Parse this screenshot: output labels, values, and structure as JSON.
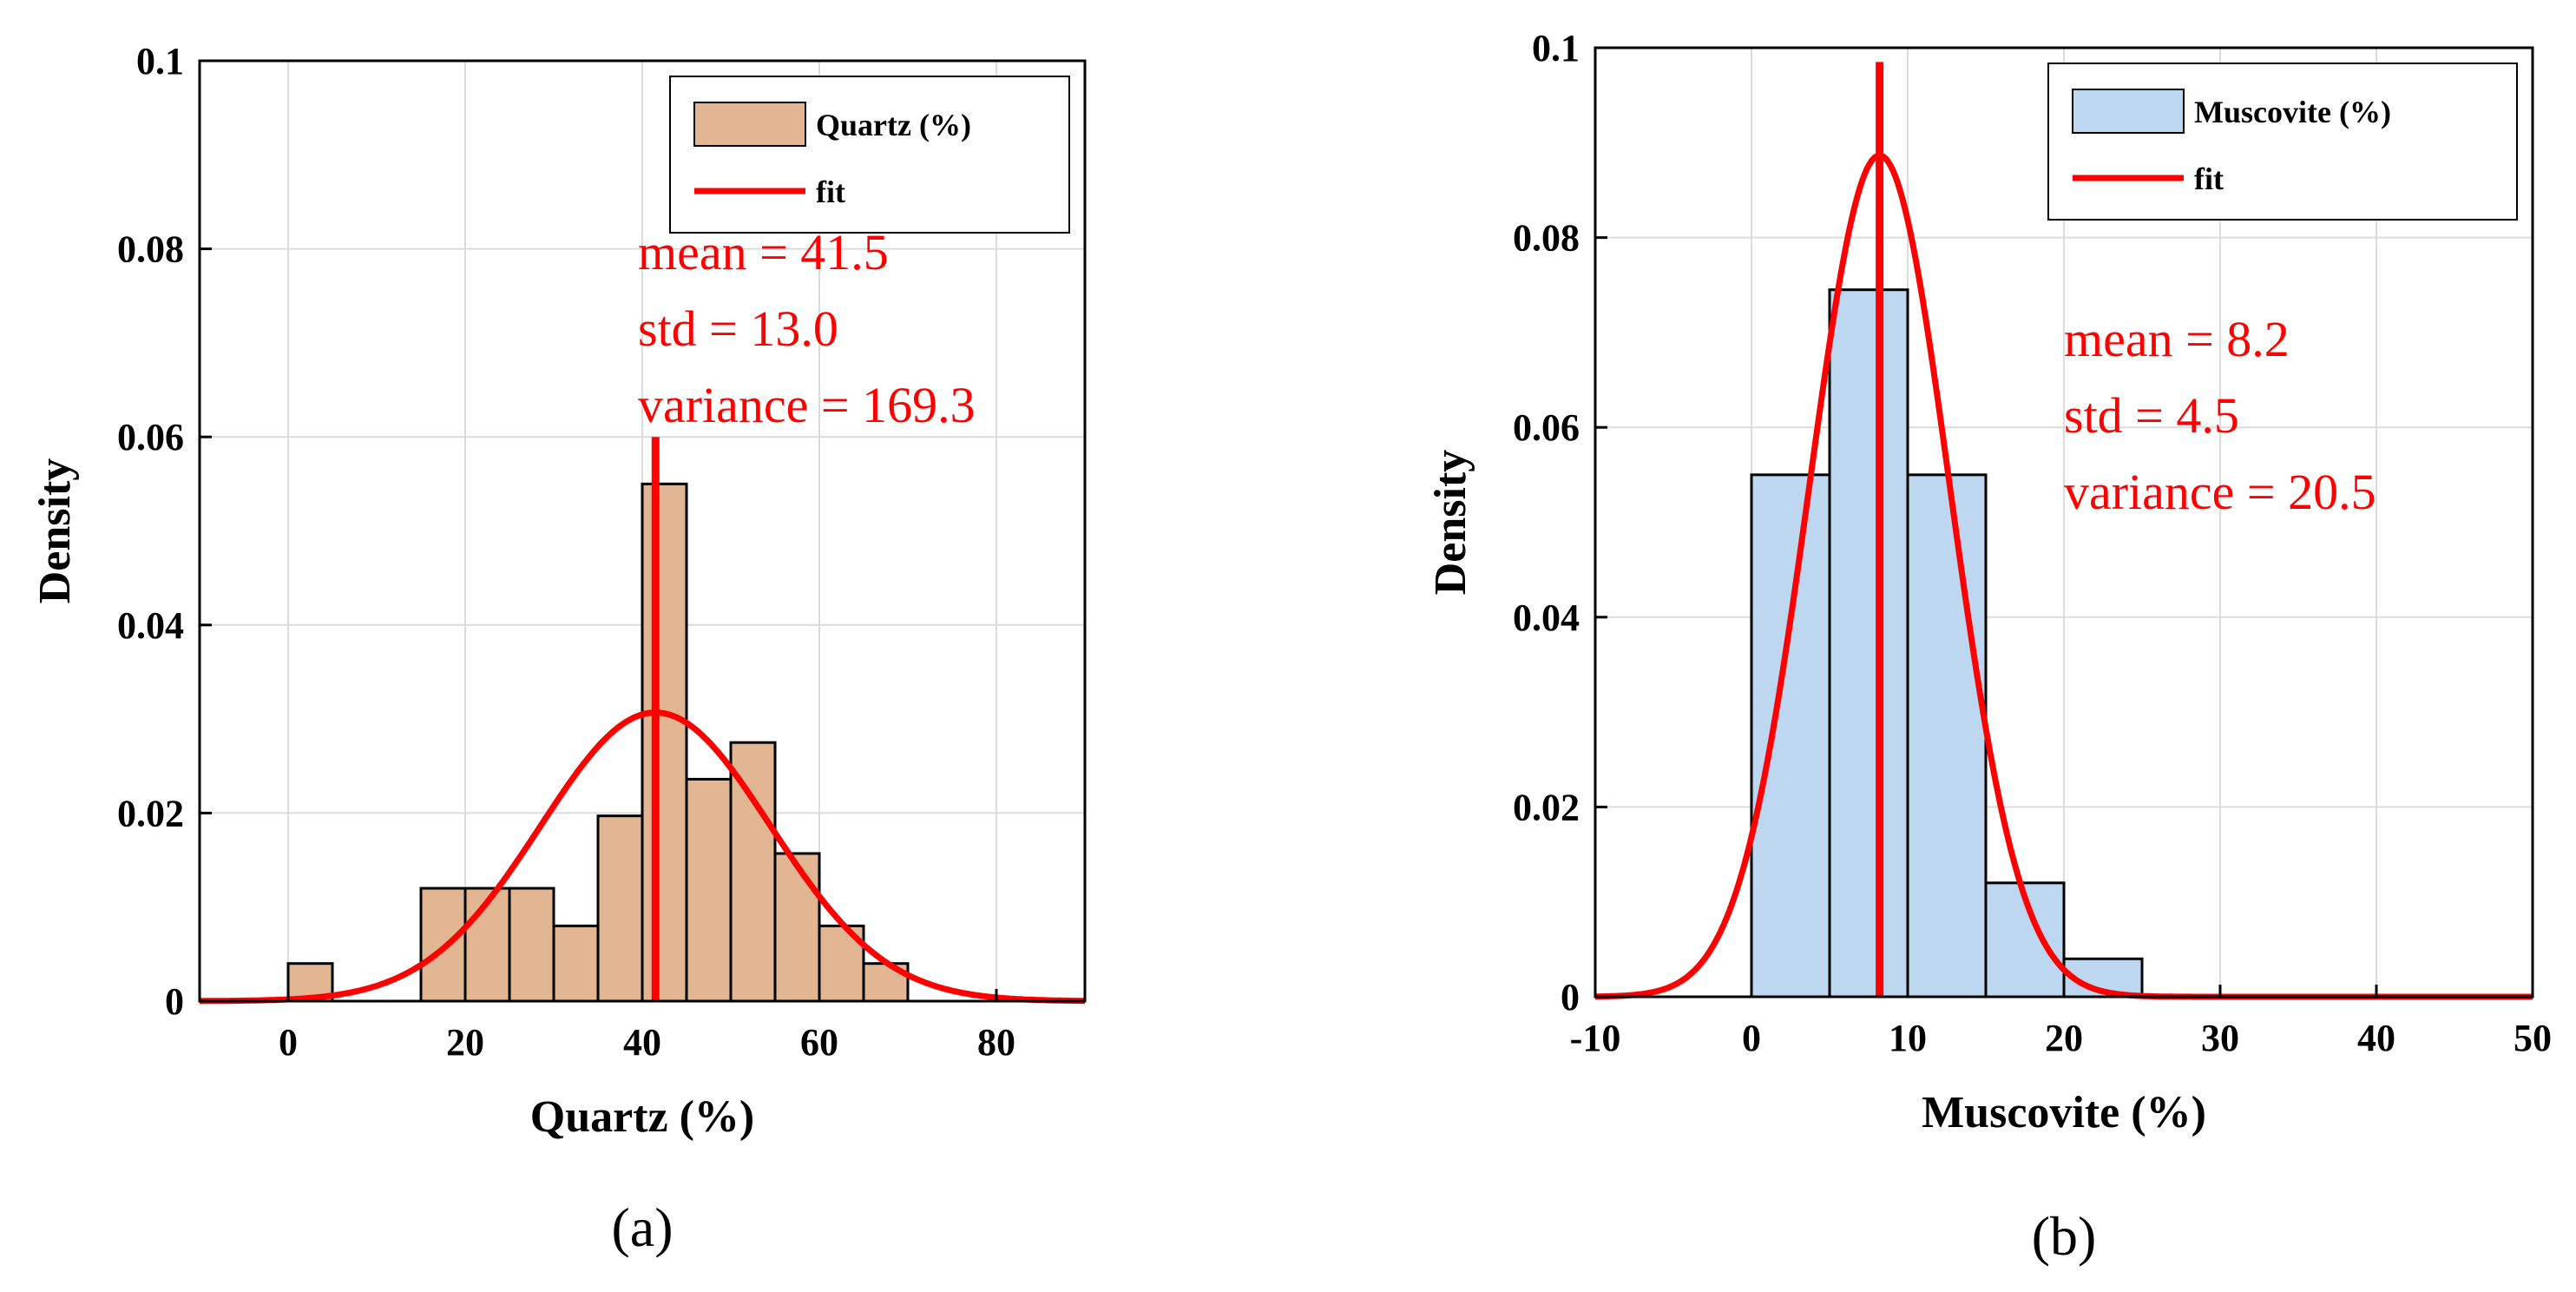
{
  "chart_data": [
    {
      "type": "bar",
      "subtype": "histogram-with-normal-fit",
      "caption": "(a)",
      "xlabel": "Quartz (%)",
      "ylabel": "Density",
      "xlim": [
        -10,
        90
      ],
      "ylim": [
        0,
        0.1
      ],
      "xticks": [
        0,
        20,
        40,
        60,
        80
      ],
      "yticks": [
        0,
        0.02,
        0.04,
        0.06,
        0.08,
        0.1
      ],
      "ytick_labels": [
        "0",
        "0.02",
        "0.04",
        "0.06",
        "0.08",
        "0.1"
      ],
      "grid": true,
      "legend": {
        "position": "top-right",
        "entries": [
          "Quartz (%)",
          "fit"
        ]
      },
      "bin_edges": [
        0,
        5,
        10,
        15,
        20,
        25,
        30,
        35,
        40,
        45,
        50,
        55,
        60,
        65,
        70
      ],
      "values": [
        0.004,
        0,
        0,
        0.012,
        0.012,
        0.012,
        0.008,
        0.0197,
        0.055,
        0.0236,
        0.0275,
        0.0157,
        0.008,
        0.004
      ],
      "bar_color": "#e2b593",
      "fit_color": "#ff0000",
      "fit": {
        "mean": 41.5,
        "std": 13.0
      },
      "mean_line_top": 0.06,
      "annotations": [
        "mean = 41.5",
        "std = 13.0",
        "variance = 169.3"
      ]
    },
    {
      "type": "bar",
      "subtype": "histogram-with-normal-fit",
      "caption": "(b)",
      "xlabel": "Muscovite (%)",
      "ylabel": "Density",
      "xlim": [
        -10,
        50
      ],
      "ylim": [
        0,
        0.1
      ],
      "xticks": [
        -10,
        0,
        10,
        20,
        30,
        40,
        50
      ],
      "yticks": [
        0,
        0.02,
        0.04,
        0.06,
        0.08,
        0.1
      ],
      "ytick_labels": [
        "0",
        "0.02",
        "0.04",
        "0.06",
        "0.08",
        "0.1"
      ],
      "grid": true,
      "legend": {
        "position": "top-right",
        "entries": [
          "Muscovite (%)",
          "fit"
        ]
      },
      "bin_edges": [
        0,
        5,
        10,
        15,
        20,
        25
      ],
      "values": [
        0.055,
        0.0745,
        0.055,
        0.012,
        0.004
      ],
      "bar_color": "#bdd7f1",
      "fit_color": "#ff0000",
      "fit": {
        "mean": 8.2,
        "std": 4.5
      },
      "mean_line_top": 0.0985,
      "annotations": [
        "mean = 8.2",
        "std = 4.5",
        "variance = 20.5"
      ]
    }
  ]
}
